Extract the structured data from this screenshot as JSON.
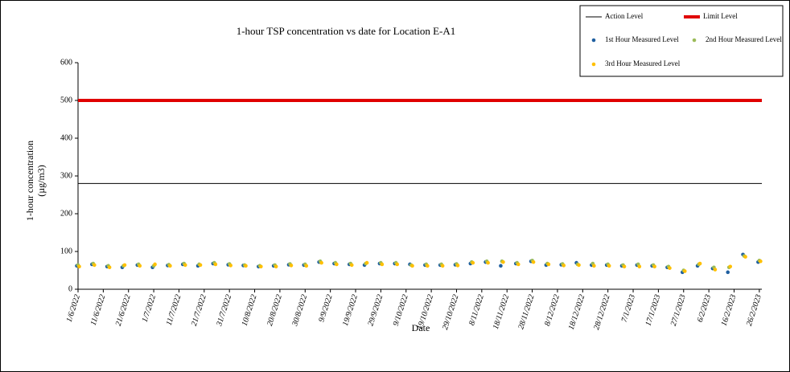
{
  "chart_data": {
    "type": "scatter",
    "title": "1-hour TSP concentration  vs date for Location E-A1",
    "xlabel": "Date",
    "ylabel": [
      "1-hour concentration",
      "(µg/m3)"
    ],
    "x": [
      "1/6/2022",
      "7/6/2022",
      "13/6/2022",
      "19/6/2022",
      "25/6/2022",
      "1/7/2022",
      "7/7/2022",
      "13/7/2022",
      "19/7/2022",
      "25/7/2022",
      "31/7/2022",
      "6/8/2022",
      "12/8/2022",
      "18/8/2022",
      "24/8/2022",
      "30/8/2022",
      "5/9/2022",
      "11/9/2022",
      "17/9/2022",
      "23/9/2022",
      "29/9/2022",
      "5/10/2022",
      "11/10/2022",
      "17/10/2022",
      "23/10/2022",
      "29/10/2022",
      "4/11/2022",
      "10/11/2022",
      "16/11/2022",
      "22/11/2022",
      "28/11/2022",
      "4/12/2022",
      "10/12/2022",
      "16/12/2022",
      "22/12/2022",
      "28/12/2022",
      "3/1/2023",
      "9/1/2023",
      "15/1/2023",
      "21/1/2023",
      "27/1/2023",
      "2/2/2023",
      "8/2/2023",
      "14/2/2023",
      "20/2/2023",
      "26/2/2023"
    ],
    "series": [
      {
        "name": "1st Hour Measured Level",
        "color": "#1f5fa0",
        "values": [
          62,
          66,
          60,
          58,
          64,
          58,
          63,
          66,
          62,
          68,
          65,
          63,
          60,
          62,
          65,
          64,
          72,
          68,
          66,
          64,
          68,
          68,
          66,
          64,
          64,
          65,
          68,
          72,
          62,
          68,
          74,
          64,
          65,
          70,
          64,
          64,
          62,
          64,
          62,
          58,
          45,
          62,
          55,
          45,
          92,
          72
        ]
      },
      {
        "name": "2nd Hour Measured Level",
        "color": "#9bbb59",
        "values": [
          64,
          68,
          62,
          62,
          66,
          62,
          65,
          68,
          66,
          70,
          67,
          64,
          62,
          64,
          67,
          66,
          74,
          70,
          68,
          68,
          70,
          70,
          64,
          66,
          66,
          67,
          72,
          74,
          74,
          70,
          76,
          68,
          67,
          66,
          68,
          66,
          64,
          66,
          64,
          60,
          50,
          66,
          58,
          58,
          88,
          76
        ]
      },
      {
        "name": "3rd Hour Measured Level",
        "color": "#ffc000",
        "values": [
          60,
          64,
          58,
          64,
          62,
          66,
          62,
          64,
          64,
          66,
          63,
          62,
          60,
          60,
          63,
          62,
          70,
          66,
          64,
          70,
          66,
          66,
          62,
          62,
          62,
          63,
          70,
          70,
          72,
          66,
          72,
          66,
          63,
          64,
          62,
          62,
          60,
          60,
          60,
          56,
          48,
          68,
          52,
          60,
          86,
          74
        ]
      }
    ],
    "lines": [
      {
        "name": "Action Level",
        "color": "#000000",
        "value": 280
      },
      {
        "name": "Limit Level",
        "color": "#e00000",
        "value": 500
      }
    ],
    "xlim": [
      "1/6/2022",
      "27/2/2023"
    ],
    "xticks": [
      "1/6/2022",
      "11/6/2022",
      "21/6/2022",
      "1/7/2022",
      "11/7/2022",
      "21/7/2022",
      "31/7/2022",
      "10/8/2022",
      "20/8/2022",
      "30/8/2022",
      "9/9/2022",
      "19/9/2022",
      "29/9/2022",
      "9/10/2022",
      "19/10/2022",
      "29/10/2022",
      "8/11/2022",
      "18/11/2022",
      "28/11/2022",
      "8/12/2022",
      "18/12/2022",
      "28/12/2022",
      "7/1/2023",
      "17/1/2023",
      "27/1/2023",
      "6/2/2023",
      "16/2/2023",
      "26/2/2023"
    ],
    "ylim": [
      0,
      600
    ],
    "yticks": [
      0,
      100,
      200,
      300,
      400,
      500,
      600
    ],
    "legend": "upper right"
  }
}
